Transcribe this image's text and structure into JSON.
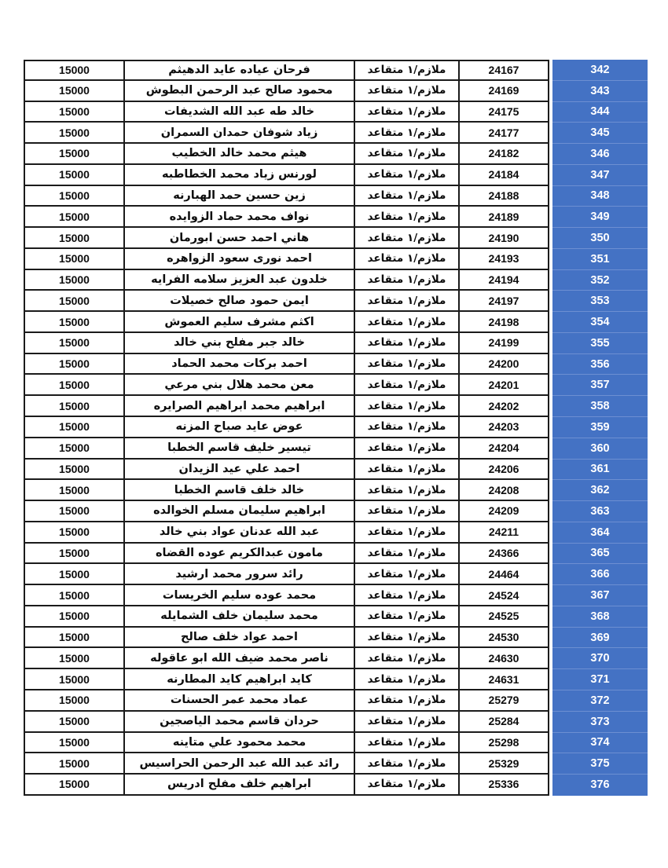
{
  "page": {
    "background_color": "#ffffff",
    "description_labels": {
      "rank_value": "ملازم/١ متقاعد",
      "amount_value": "15000"
    }
  },
  "table": {
    "colors": {
      "serial_bg": "#4472C4",
      "serial_text": "#ffffff",
      "serial_divider": "#6d8fd2",
      "grid_border": "#1b1b1b",
      "cell_bg": "#ffffff",
      "cell_text": "#0d0d0d"
    },
    "columns": [
      "amount",
      "name",
      "rank",
      "number",
      "serial"
    ],
    "rows": [
      {
        "serial": "342",
        "number": "24167",
        "rank": "ملازم/١ متقاعد",
        "name": "فرحان عياده عايد الدهيثم",
        "amount": "15000"
      },
      {
        "serial": "343",
        "number": "24169",
        "rank": "ملازم/١ متقاعد",
        "name": "محمود صالح عبد الرحمن البطوش",
        "amount": "15000"
      },
      {
        "serial": "344",
        "number": "24175",
        "rank": "ملازم/١ متقاعد",
        "name": "خالد طه عبد الله الشديفات",
        "amount": "15000"
      },
      {
        "serial": "345",
        "number": "24177",
        "rank": "ملازم/١ متقاعد",
        "name": "زياد شوفان حمدان السمران",
        "amount": "15000"
      },
      {
        "serial": "346",
        "number": "24182",
        "rank": "ملازم/١ متقاعد",
        "name": "هيثم محمد خالد الخطيب",
        "amount": "15000"
      },
      {
        "serial": "347",
        "number": "24184",
        "rank": "ملازم/١ متقاعد",
        "name": "لورنس زياد محمد الخطاطبه",
        "amount": "15000"
      },
      {
        "serial": "348",
        "number": "24188",
        "rank": "ملازم/١ متقاعد",
        "name": "زين حسين حمد الهبارنه",
        "amount": "15000"
      },
      {
        "serial": "349",
        "number": "24189",
        "rank": "ملازم/١ متقاعد",
        "name": "نواف محمد حماد الزوايده",
        "amount": "15000"
      },
      {
        "serial": "350",
        "number": "24190",
        "rank": "ملازم/١ متقاعد",
        "name": "هاني احمد حسن ابورمان",
        "amount": "15000"
      },
      {
        "serial": "351",
        "number": "24193",
        "rank": "ملازم/١ متقاعد",
        "name": "احمد نورى سعود الزواهره",
        "amount": "15000"
      },
      {
        "serial": "352",
        "number": "24194",
        "rank": "ملازم/١ متقاعد",
        "name": "خلدون عبد العزيز سلامه الفرايه",
        "amount": "15000"
      },
      {
        "serial": "353",
        "number": "24197",
        "rank": "ملازم/١ متقاعد",
        "name": "ايمن حمود صالح خصيلات",
        "amount": "15000"
      },
      {
        "serial": "354",
        "number": "24198",
        "rank": "ملازم/١ متقاعد",
        "name": "اكثم مشرف سليم العموش",
        "amount": "15000"
      },
      {
        "serial": "355",
        "number": "24199",
        "rank": "ملازم/١ متقاعد",
        "name": "خالد جبر مفلح بني خالد",
        "amount": "15000"
      },
      {
        "serial": "356",
        "number": "24200",
        "rank": "ملازم/١ متقاعد",
        "name": "احمد بركات محمد الحماد",
        "amount": "15000"
      },
      {
        "serial": "357",
        "number": "24201",
        "rank": "ملازم/١ متقاعد",
        "name": "معن محمد هلال بني مرعي",
        "amount": "15000"
      },
      {
        "serial": "358",
        "number": "24202",
        "rank": "ملازم/١ متقاعد",
        "name": "ابراهيم محمد ابراهيم الصرايره",
        "amount": "15000"
      },
      {
        "serial": "359",
        "number": "24203",
        "rank": "ملازم/١ متقاعد",
        "name": "عوض عايد صباح المزنه",
        "amount": "15000"
      },
      {
        "serial": "360",
        "number": "24204",
        "rank": "ملازم/١ متقاعد",
        "name": "تيسير خليف قاسم الخطبا",
        "amount": "15000"
      },
      {
        "serial": "361",
        "number": "24206",
        "rank": "ملازم/١ متقاعد",
        "name": "احمد علي عيد الزيدان",
        "amount": "15000"
      },
      {
        "serial": "362",
        "number": "24208",
        "rank": "ملازم/١ متقاعد",
        "name": "خالد خلف قاسم الخطبا",
        "amount": "15000"
      },
      {
        "serial": "363",
        "number": "24209",
        "rank": "ملازم/١ متقاعد",
        "name": "ابراهيم سليمان مسلم الخوالده",
        "amount": "15000"
      },
      {
        "serial": "364",
        "number": "24211",
        "rank": "ملازم/١ متقاعد",
        "name": "عبد الله عدنان عواد بني خالد",
        "amount": "15000"
      },
      {
        "serial": "365",
        "number": "24366",
        "rank": "ملازم/١ متقاعد",
        "name": "مامون عبدالكريم عوده القضاه",
        "amount": "15000"
      },
      {
        "serial": "366",
        "number": "24464",
        "rank": "ملازم/١ متقاعد",
        "name": "رائد سرور محمد ارشيد",
        "amount": "15000"
      },
      {
        "serial": "367",
        "number": "24524",
        "rank": "ملازم/١ متقاعد",
        "name": "محمد عوده سليم الخريسات",
        "amount": "15000"
      },
      {
        "serial": "368",
        "number": "24525",
        "rank": "ملازم/١ متقاعد",
        "name": "محمد سليمان خلف الشمايله",
        "amount": "15000"
      },
      {
        "serial": "369",
        "number": "24530",
        "rank": "ملازم/١ متقاعد",
        "name": "احمد عواد خلف صالح",
        "amount": "15000"
      },
      {
        "serial": "370",
        "number": "24630",
        "rank": "ملازم/١ متقاعد",
        "name": "ناصر محمد ضيف الله ابو عاقوله",
        "amount": "15000"
      },
      {
        "serial": "371",
        "number": "24631",
        "rank": "ملازم/١ متقاعد",
        "name": "كايد ابراهيم كايد المطارنه",
        "amount": "15000"
      },
      {
        "serial": "372",
        "number": "25279",
        "rank": "ملازم/١ متقاعد",
        "name": "عماد محمد عمر الحسنات",
        "amount": "15000"
      },
      {
        "serial": "373",
        "number": "25284",
        "rank": "ملازم/١ متقاعد",
        "name": "حردان قاسم محمد الياصجين",
        "amount": "15000"
      },
      {
        "serial": "374",
        "number": "25298",
        "rank": "ملازم/١ متقاعد",
        "name": "محمد محمود علي متاينه",
        "amount": "15000"
      },
      {
        "serial": "375",
        "number": "25329",
        "rank": "ملازم/١ متقاعد",
        "name": "رائد عبد الله عبد الرحمن الحراسيس",
        "amount": "15000"
      },
      {
        "serial": "376",
        "number": "25336",
        "rank": "ملازم/١ متقاعد",
        "name": "ابراهيم خلف مفلح ادريس",
        "amount": "15000"
      }
    ]
  }
}
